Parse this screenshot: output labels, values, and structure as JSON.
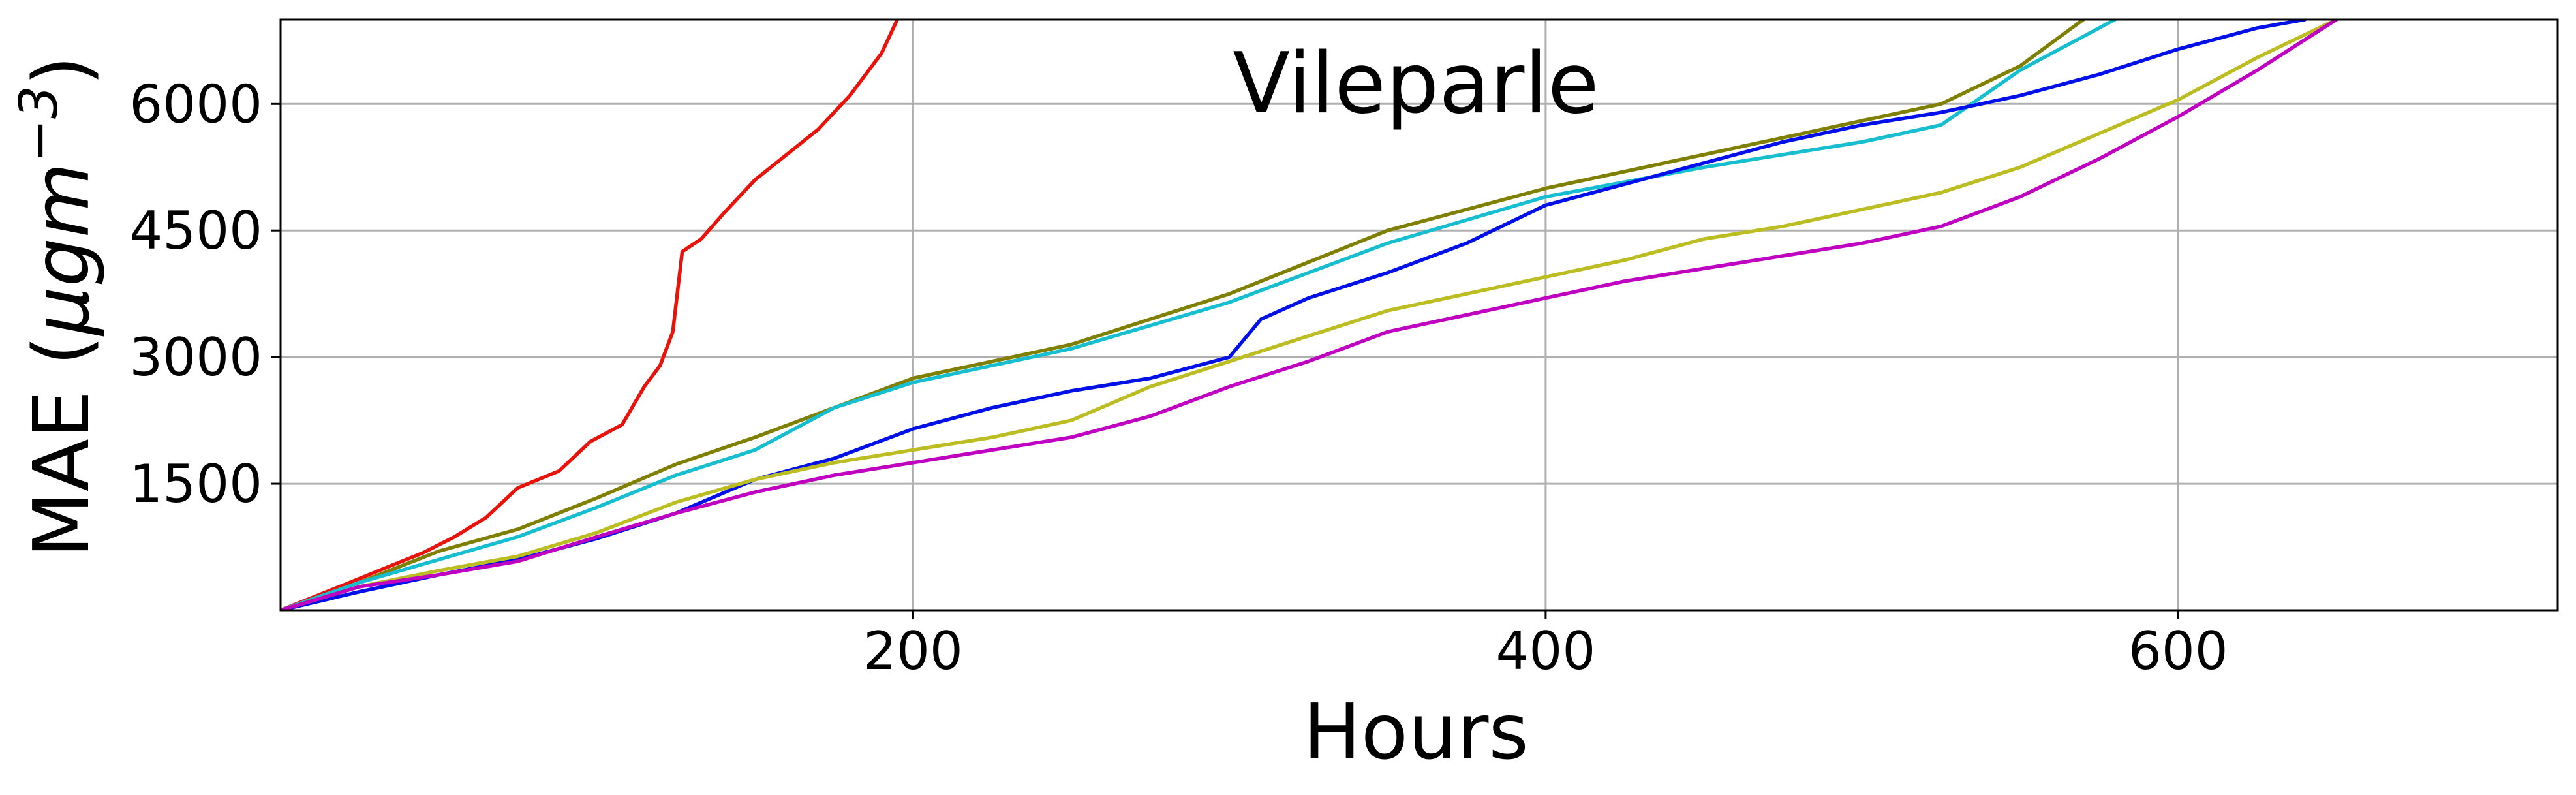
{
  "chart_data": {
    "type": "line",
    "title": "Vileparle",
    "xlabel": "Hours",
    "ylabel": "MAE (μgm⁻³)",
    "ylabel_parts": {
      "main": "MAE (",
      "mu": "μgm",
      "exp": "−3",
      "close": ")"
    },
    "xlim": [
      0,
      720
    ],
    "ylim": [
      0,
      7000
    ],
    "xticks": [
      200,
      400,
      600
    ],
    "xtick_labels": [
      "200",
      "400",
      "600"
    ],
    "yticks": [
      1500,
      3000,
      4500,
      6000
    ],
    "ytick_labels": [
      "1500",
      "3000",
      "4500",
      "6000"
    ],
    "grid": true,
    "legend": "none",
    "series": [
      {
        "color": "#e8140c",
        "points": [
          [
            0,
            0
          ],
          [
            20,
            300
          ],
          [
            35,
            530
          ],
          [
            45,
            680
          ],
          [
            55,
            870
          ],
          [
            65,
            1100
          ],
          [
            75,
            1450
          ],
          [
            88,
            1650
          ],
          [
            98,
            2000
          ],
          [
            108,
            2200
          ],
          [
            115,
            2650
          ],
          [
            120,
            2900
          ],
          [
            124,
            3300
          ],
          [
            127,
            4250
          ],
          [
            133,
            4400
          ],
          [
            140,
            4700
          ],
          [
            150,
            5100
          ],
          [
            160,
            5400
          ],
          [
            170,
            5700
          ],
          [
            180,
            6100
          ],
          [
            190,
            6600
          ],
          [
            195,
            7000
          ]
        ]
      },
      {
        "color": "#808000",
        "points": [
          [
            0,
            0
          ],
          [
            25,
            330
          ],
          [
            50,
            700
          ],
          [
            75,
            960
          ],
          [
            100,
            1330
          ],
          [
            125,
            1730
          ],
          [
            150,
            2050
          ],
          [
            175,
            2400
          ],
          [
            200,
            2750
          ],
          [
            250,
            3150
          ],
          [
            300,
            3750
          ],
          [
            350,
            4500
          ],
          [
            400,
            5000
          ],
          [
            450,
            5400
          ],
          [
            500,
            5800
          ],
          [
            525,
            6000
          ],
          [
            550,
            6450
          ],
          [
            570,
            7000
          ]
        ]
      },
      {
        "color": "#17becf",
        "points": [
          [
            0,
            0
          ],
          [
            25,
            330
          ],
          [
            50,
            600
          ],
          [
            75,
            870
          ],
          [
            100,
            1220
          ],
          [
            125,
            1600
          ],
          [
            150,
            1900
          ],
          [
            175,
            2400
          ],
          [
            200,
            2700
          ],
          [
            250,
            3100
          ],
          [
            300,
            3650
          ],
          [
            350,
            4350
          ],
          [
            400,
            4900
          ],
          [
            450,
            5250
          ],
          [
            500,
            5550
          ],
          [
            525,
            5750
          ],
          [
            550,
            6400
          ],
          [
            580,
            7000
          ]
        ]
      },
      {
        "color": "#0010e8",
        "points": [
          [
            0,
            0
          ],
          [
            25,
            220
          ],
          [
            50,
            420
          ],
          [
            75,
            600
          ],
          [
            100,
            850
          ],
          [
            125,
            1150
          ],
          [
            150,
            1550
          ],
          [
            175,
            1800
          ],
          [
            200,
            2150
          ],
          [
            225,
            2400
          ],
          [
            250,
            2600
          ],
          [
            275,
            2750
          ],
          [
            300,
            3000
          ],
          [
            310,
            3450
          ],
          [
            325,
            3700
          ],
          [
            350,
            4000
          ],
          [
            375,
            4350
          ],
          [
            400,
            4800
          ],
          [
            425,
            5050
          ],
          [
            450,
            5300
          ],
          [
            475,
            5550
          ],
          [
            500,
            5750
          ],
          [
            525,
            5900
          ],
          [
            550,
            6100
          ],
          [
            575,
            6350
          ],
          [
            600,
            6650
          ],
          [
            625,
            6900
          ],
          [
            640,
            7000
          ]
        ]
      },
      {
        "color": "#bcbd22",
        "points": [
          [
            0,
            0
          ],
          [
            25,
            280
          ],
          [
            50,
            470
          ],
          [
            75,
            640
          ],
          [
            100,
            920
          ],
          [
            125,
            1280
          ],
          [
            150,
            1550
          ],
          [
            175,
            1750
          ],
          [
            200,
            1900
          ],
          [
            225,
            2050
          ],
          [
            250,
            2250
          ],
          [
            275,
            2650
          ],
          [
            300,
            2950
          ],
          [
            325,
            3250
          ],
          [
            350,
            3550
          ],
          [
            375,
            3750
          ],
          [
            400,
            3950
          ],
          [
            425,
            4150
          ],
          [
            450,
            4400
          ],
          [
            475,
            4550
          ],
          [
            500,
            4750
          ],
          [
            525,
            4950
          ],
          [
            550,
            5250
          ],
          [
            575,
            5650
          ],
          [
            600,
            6050
          ],
          [
            625,
            6550
          ],
          [
            650,
            7000
          ]
        ]
      },
      {
        "color": "#c000c0",
        "points": [
          [
            0,
            0
          ],
          [
            25,
            280
          ],
          [
            50,
            420
          ],
          [
            75,
            580
          ],
          [
            100,
            870
          ],
          [
            125,
            1150
          ],
          [
            150,
            1400
          ],
          [
            175,
            1600
          ],
          [
            200,
            1750
          ],
          [
            225,
            1900
          ],
          [
            250,
            2050
          ],
          [
            275,
            2300
          ],
          [
            300,
            2650
          ],
          [
            325,
            2950
          ],
          [
            350,
            3300
          ],
          [
            375,
            3500
          ],
          [
            400,
            3700
          ],
          [
            425,
            3900
          ],
          [
            450,
            4050
          ],
          [
            475,
            4200
          ],
          [
            500,
            4350
          ],
          [
            525,
            4550
          ],
          [
            550,
            4900
          ],
          [
            575,
            5350
          ],
          [
            600,
            5850
          ],
          [
            625,
            6400
          ],
          [
            650,
            7000
          ]
        ]
      }
    ]
  }
}
